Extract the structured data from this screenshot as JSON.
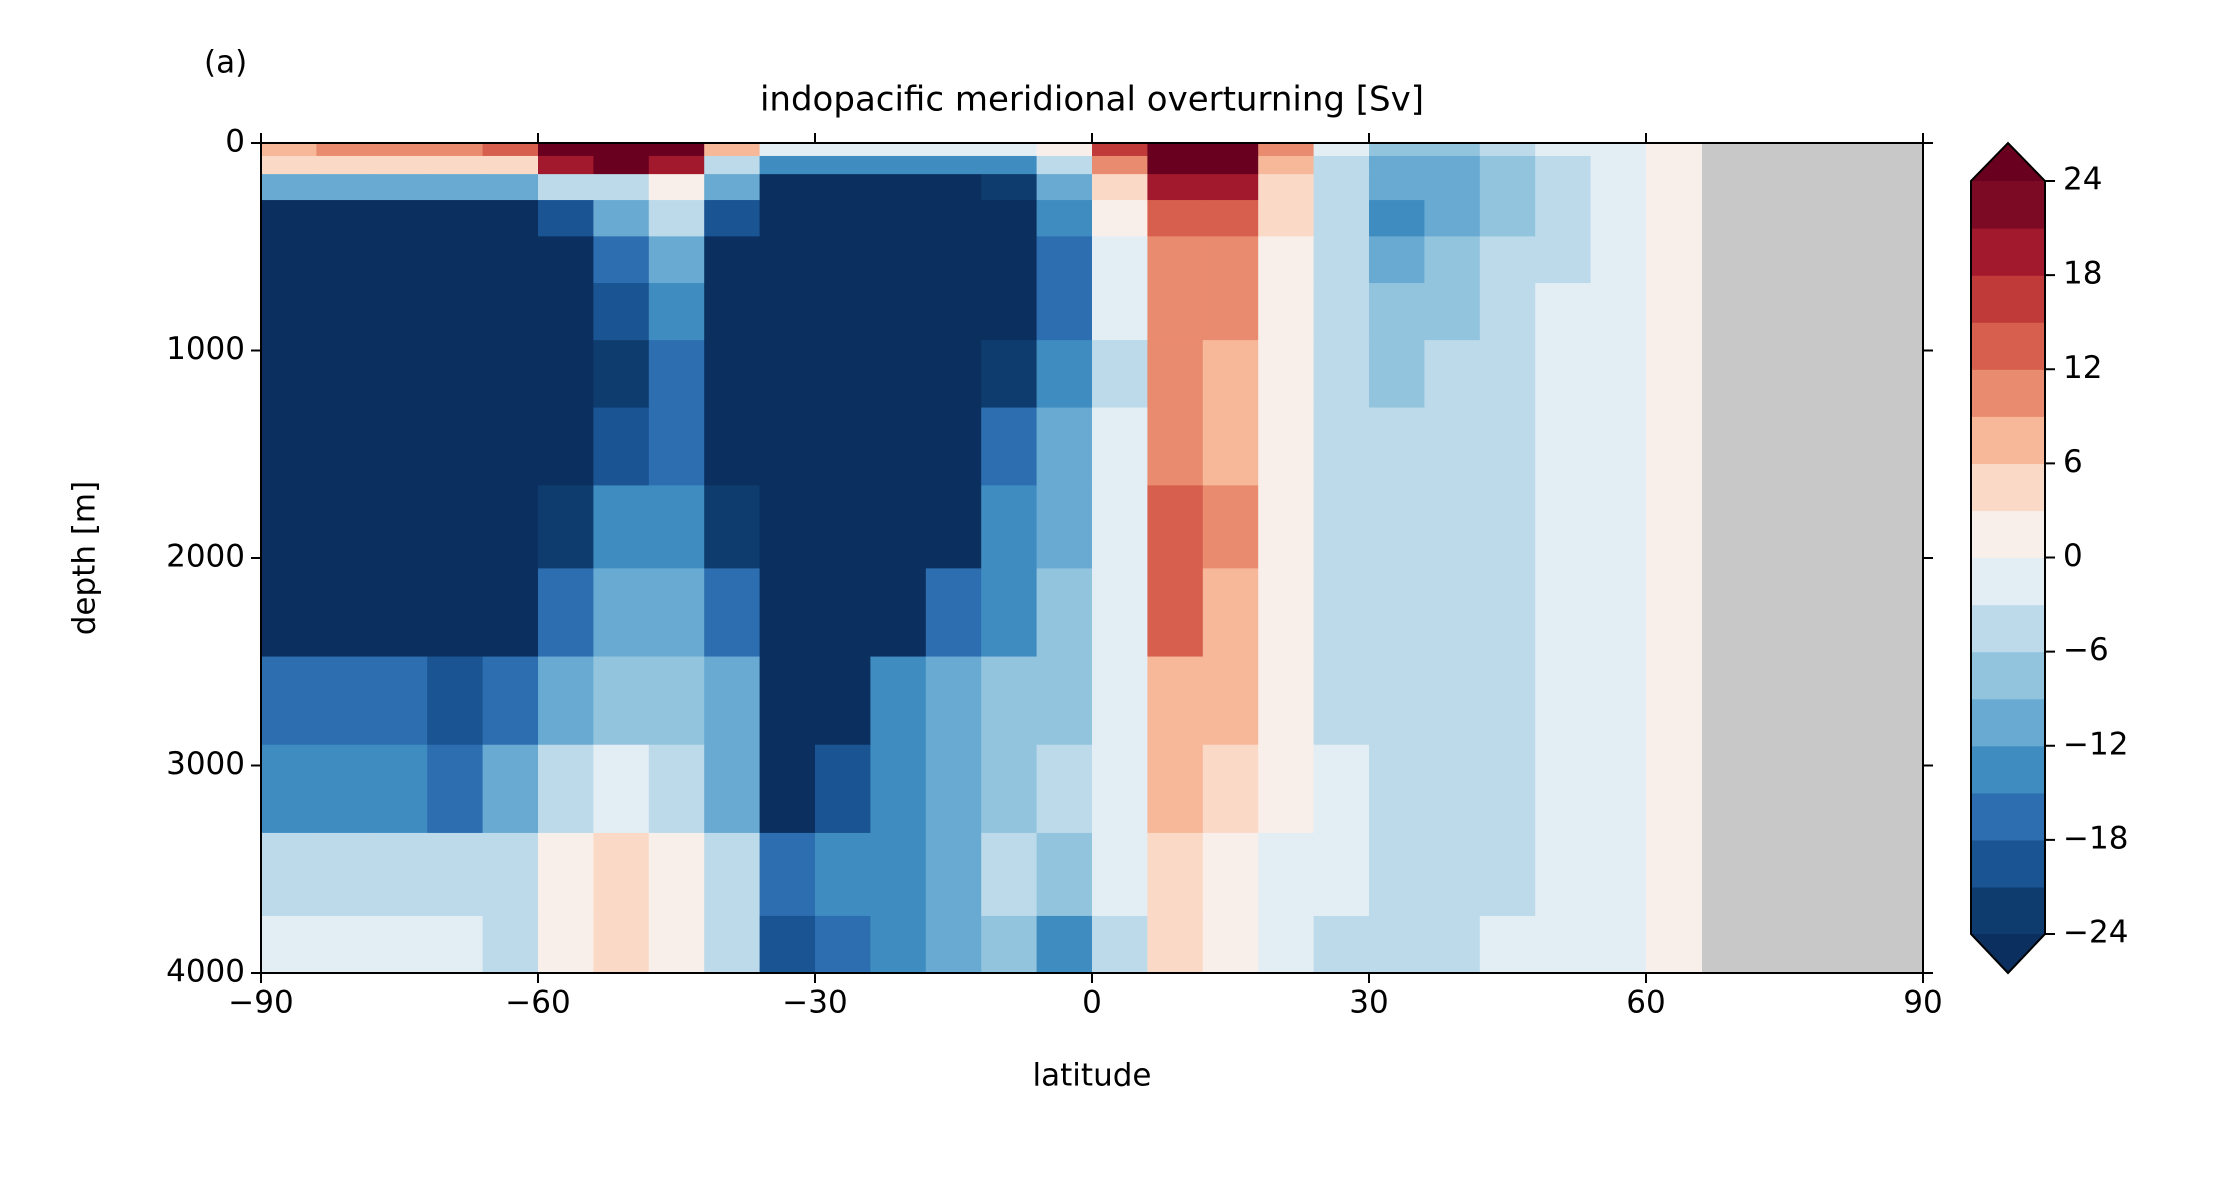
{
  "chart_data": {
    "type": "heatmap",
    "panel_label": "(a)",
    "title": "indopacific meridional overturning [Sv]",
    "x_label": "latitude",
    "y_label": "depth [m]",
    "x": [
      -87,
      -81,
      -75,
      -69,
      -63,
      -57,
      -51,
      -45,
      -39,
      -33,
      -27,
      -21,
      -15,
      -9,
      -3,
      3,
      9,
      15,
      21,
      27,
      33,
      39,
      45,
      51,
      57,
      63,
      69,
      75,
      81,
      87
    ],
    "y": [
      25,
      100,
      200,
      350,
      550,
      800,
      1100,
      1450,
      1850,
      2250,
      2700,
      3100,
      3550,
      3900
    ],
    "z": [
      [
        8,
        9,
        10,
        10,
        12,
        26,
        27,
        26,
        6,
        -3,
        -2,
        -3,
        -3,
        -3,
        0,
        16,
        27,
        26,
        10,
        -3,
        -8,
        -8,
        -6,
        -3,
        -1,
        1,
        null,
        null,
        null,
        null
      ],
      [
        3,
        3,
        3,
        3,
        4,
        20,
        24,
        20,
        -5,
        -15,
        -15,
        -14,
        -14,
        -13,
        -5,
        10,
        25,
        24,
        6,
        -5,
        -12,
        -12,
        -8,
        -4,
        -2,
        1,
        null,
        null,
        null,
        null
      ],
      [
        -12,
        -12,
        -12,
        -12,
        -12,
        -6,
        -4,
        2,
        -10,
        -25,
        -25,
        -25,
        -25,
        -22,
        -10,
        3,
        20,
        20,
        4,
        -6,
        -12,
        -10,
        -7,
        -4,
        -2,
        1,
        null,
        null,
        null,
        null
      ],
      [
        -25,
        -25,
        -25,
        -25,
        -25,
        -20,
        -10,
        -6,
        -20,
        -25,
        -25,
        -25,
        -25,
        -25,
        -15,
        0,
        14,
        14,
        3,
        -6,
        -13,
        -10,
        -7,
        -4,
        -2,
        1,
        null,
        null,
        null,
        null
      ],
      [
        -25,
        -25,
        -25,
        -25,
        -25,
        -25,
        -18,
        -12,
        -25,
        -25,
        -25,
        -25,
        -25,
        -25,
        -18,
        -2,
        10,
        10,
        2,
        -6,
        -10,
        -9,
        -6,
        -4,
        -2,
        1,
        null,
        null,
        null,
        null
      ],
      [
        -25,
        -25,
        -25,
        -25,
        -25,
        -25,
        -20,
        -15,
        -25,
        -25,
        -25,
        -25,
        -25,
        -25,
        -16,
        -3,
        9,
        9,
        2,
        -5,
        -8,
        -7,
        -5,
        -3,
        -2,
        1,
        null,
        null,
        null,
        null
      ],
      [
        -25,
        -25,
        -25,
        -25,
        -25,
        -25,
        -22,
        -18,
        -25,
        -25,
        -25,
        -25,
        -25,
        -22,
        -14,
        -4,
        10,
        8,
        2,
        -5,
        -7,
        -6,
        -5,
        -3,
        -2,
        1,
        null,
        null,
        null,
        null
      ],
      [
        -25,
        -25,
        -25,
        -25,
        -25,
        -25,
        -20,
        -18,
        -25,
        -25,
        -25,
        -25,
        -25,
        -18,
        -12,
        -3,
        11,
        8,
        2,
        -4,
        -6,
        -6,
        -5,
        -3,
        -1,
        1,
        null,
        null,
        null,
        null
      ],
      [
        -25,
        -25,
        -25,
        -25,
        -25,
        -22,
        -15,
        -14,
        -22,
        -25,
        -25,
        -25,
        -25,
        -14,
        -10,
        -3,
        12,
        9,
        2,
        -4,
        -6,
        -6,
        -5,
        -3,
        -1,
        1,
        null,
        null,
        null,
        null
      ],
      [
        -25,
        -25,
        -25,
        -25,
        -25,
        -18,
        -11,
        -10,
        -18,
        -25,
        -25,
        -25,
        -18,
        -13,
        -9,
        -2,
        12,
        8,
        2,
        -4,
        -6,
        -6,
        -5,
        -3,
        -1,
        1,
        null,
        null,
        null,
        null
      ],
      [
        -18,
        -18,
        -18,
        -20,
        -18,
        -12,
        -7,
        -7,
        -12,
        -25,
        -25,
        -14,
        -11,
        -9,
        -7,
        -1,
        8,
        7,
        2,
        -4,
        -6,
        -6,
        -5,
        -3,
        -1,
        1,
        null,
        null,
        null,
        null
      ],
      [
        -14,
        -14,
        -14,
        -17,
        -12,
        -6,
        -3,
        -5,
        -10,
        -25,
        -20,
        -15,
        -10,
        -8,
        -6,
        -1,
        7,
        4,
        1,
        -3,
        -5,
        -6,
        -4,
        -3,
        -1,
        1,
        null,
        null,
        null,
        null
      ],
      [
        -4,
        -4,
        -4,
        -5,
        -4,
        2,
        4,
        1,
        -5,
        -17,
        -15,
        -13,
        -10,
        -6,
        -8,
        -2,
        5,
        2,
        -1,
        -3,
        -5,
        -6,
        -4,
        -2,
        -1,
        1,
        null,
        null,
        null,
        null
      ],
      [
        -2,
        -2,
        -2,
        -3,
        -4,
        2,
        3,
        1,
        -6,
        -20,
        -17,
        -14,
        -11,
        -8,
        -15,
        -6,
        3,
        1,
        -2,
        -4,
        -6,
        -5,
        -3,
        -2,
        -1,
        1,
        null,
        null,
        null,
        null
      ]
    ],
    "xlim": [
      -90,
      90
    ],
    "ylim": [
      0,
      4000
    ],
    "invert_y": true,
    "xticks": [
      {
        "value": -90,
        "label": "−90"
      },
      {
        "value": -60,
        "label": "−60"
      },
      {
        "value": -30,
        "label": "−30"
      },
      0,
      30,
      60,
      90
    ],
    "yticks": [
      0,
      1000,
      2000,
      3000,
      4000
    ],
    "missing_color": "#c8c8c8",
    "colorbar": {
      "levels": [
        -24,
        -21,
        -18,
        -15,
        -12,
        -9,
        -6,
        -3,
        0,
        3,
        6,
        9,
        12,
        15,
        18,
        21,
        24
      ],
      "colors": [
        "#0f3c6e",
        "#1a5493",
        "#2c6eb0",
        "#3f8cc1",
        "#69aad2",
        "#93c4de",
        "#bcdaea",
        "#e3eef4",
        "#f8efea",
        "#fbd9c7",
        "#f7b899",
        "#e98b6e",
        "#d6604d",
        "#c03a3a",
        "#a2182c",
        "#7d0a24"
      ],
      "under_color": "#0b305f",
      "over_color": "#6a0020",
      "ticks": [
        {
          "value": -24,
          "label": "−24"
        },
        {
          "value": -18,
          "label": "−18"
        },
        {
          "value": -12,
          "label": "−12"
        },
        {
          "value": -6,
          "label": "−6"
        },
        0,
        6,
        12,
        18,
        24
      ]
    }
  }
}
